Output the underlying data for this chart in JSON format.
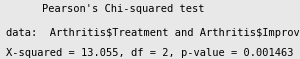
{
  "title": "Pearson's Chi-squared test",
  "line1": "data:  Arthritis$Treatment and Arthritis$Improved",
  "line2": "X-squared = 13.055, df = 2, p-value = 0.001463",
  "bg_color": "#e8e8e8",
  "text_color": "#000000",
  "font_family": "monospace",
  "title_fontsize": 7.5,
  "body_fontsize": 7.5
}
